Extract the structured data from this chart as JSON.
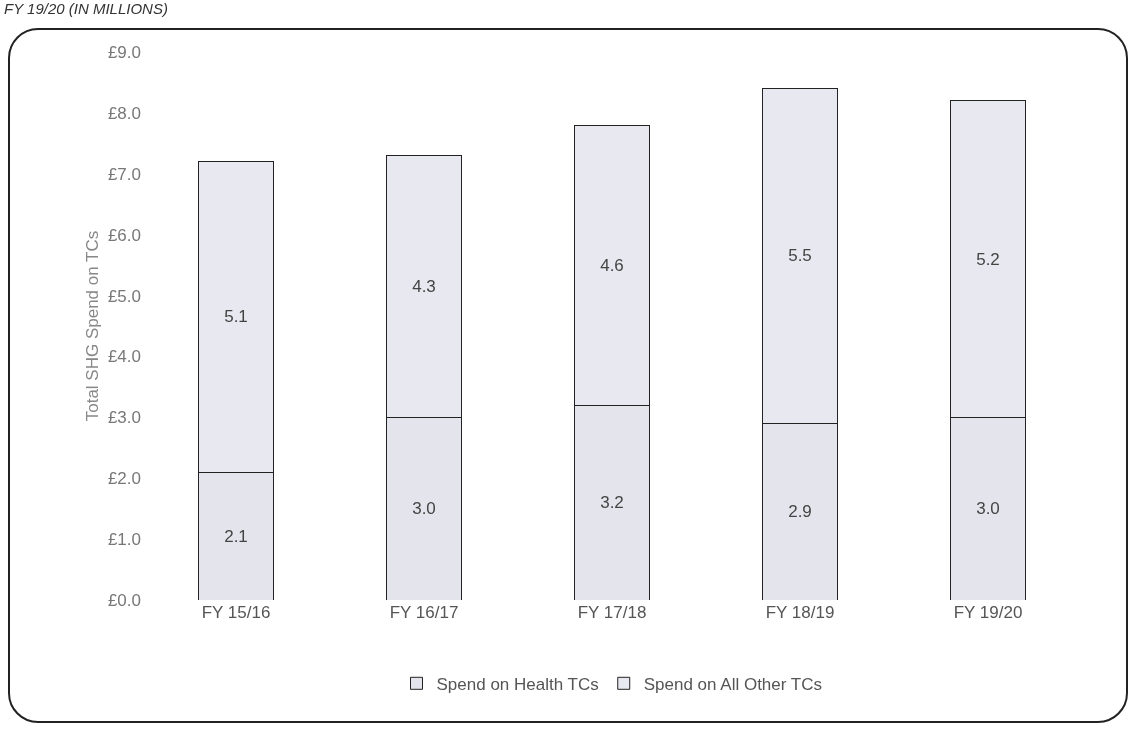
{
  "chart_data": {
    "type": "bar",
    "subtitle": "FY 19/20 (IN MILLIONS)",
    "ylabel": "Total SHG Spend on TCs",
    "categories": [
      "FY 15/16",
      "FY 16/17",
      "FY 17/18",
      "FY 18/19",
      "FY 19/20"
    ],
    "series": [
      {
        "name": "Spend on Health TCs",
        "color": "#e4e4ec",
        "values": [
          2.1,
          3.0,
          3.2,
          2.9,
          3.0
        ],
        "value_labels": [
          "2.1",
          "3.0",
          "3.2",
          "2.9",
          "3.0"
        ]
      },
      {
        "name": "Spend on All Other TCs",
        "color": "#e8e8f0",
        "values": [
          5.1,
          4.3,
          4.6,
          5.5,
          5.2
        ],
        "value_labels": [
          "5.1",
          "4.3",
          "4.6",
          "5.5",
          "5.2"
        ]
      }
    ],
    "stacked": true,
    "ylim": [
      0,
      9
    ],
    "yticks": [
      {
        "value": 0,
        "label": "£0.0"
      },
      {
        "value": 1,
        "label": "£1.0"
      },
      {
        "value": 2,
        "label": "£2.0"
      },
      {
        "value": 3,
        "label": "£3.0"
      },
      {
        "value": 4,
        "label": "£4.0"
      },
      {
        "value": 5,
        "label": "£5.0"
      },
      {
        "value": 6,
        "label": "£6.0"
      },
      {
        "value": 7,
        "label": "£7.0"
      },
      {
        "value": 8,
        "label": "£8.0"
      },
      {
        "value": 9,
        "label": "£9.0"
      }
    ],
    "grid": false,
    "legend": "bottom"
  }
}
